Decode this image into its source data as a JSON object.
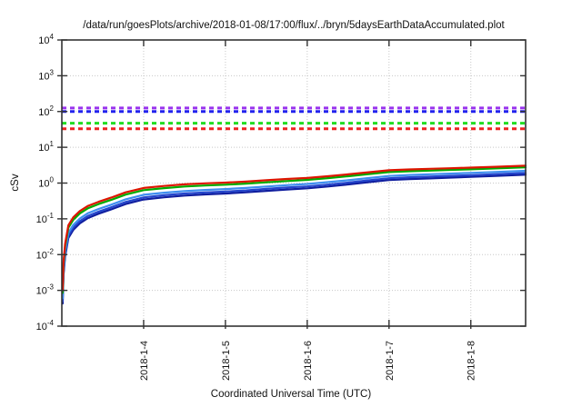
{
  "chart_data": {
    "type": "line",
    "title": "/data/run/goesPlots/archive/2018-01-08/17:00/flux/../bryn/5daysEarthDataAccumulated.plot",
    "xlabel": "Coordinated Universal Time (UTC)",
    "ylabel": "cSv",
    "x_scale": "time-linear",
    "y_scale": "log10",
    "xlim_days": [
      0,
      5.67
    ],
    "ylim": [
      0.0001,
      10000
    ],
    "x_ticks": [
      {
        "label": "2018-1-4",
        "t_days": 1
      },
      {
        "label": "2018-1-5",
        "t_days": 2
      },
      {
        "label": "2018-1-6",
        "t_days": 3
      },
      {
        "label": "2018-1-7",
        "t_days": 4
      },
      {
        "label": "2018-1-8",
        "t_days": 5
      }
    ],
    "y_tick_exponents": [
      4,
      3,
      2,
      1,
      0,
      -1,
      -2,
      -3,
      -4
    ],
    "grid": {
      "on": true,
      "style": "dotted",
      "color": "#c8c8c8"
    },
    "legend": {
      "shown": false
    },
    "thresholds": [
      {
        "name": "limit-purple",
        "value_cSv": 125,
        "color": "#9933ee",
        "style": "dashed"
      },
      {
        "name": "limit-blue",
        "value_cSv": 100,
        "color": "#2222ee",
        "style": "dashed"
      },
      {
        "name": "limit-green",
        "value_cSv": 47,
        "color": "#22dd22",
        "style": "dashed"
      },
      {
        "name": "limit-red",
        "value_cSv": 33,
        "color": "#ee2222",
        "style": "dashed"
      }
    ],
    "t_days": [
      0.01,
      0.02,
      0.04,
      0.08,
      0.14,
      0.22,
      0.32,
      0.45,
      0.6,
      0.78,
      1.0,
      1.25,
      1.5,
      1.75,
      2.0,
      2.25,
      2.5,
      2.75,
      3.0,
      3.25,
      3.5,
      3.75,
      4.0,
      4.25,
      4.5,
      4.75,
      5.0,
      5.3,
      5.67
    ],
    "series": [
      {
        "name": "accumulated-dose-red",
        "color": "#dd1500",
        "values": [
          0.001,
          0.006,
          0.02,
          0.066,
          0.11,
          0.165,
          0.23,
          0.3,
          0.39,
          0.55,
          0.73,
          0.83,
          0.92,
          0.98,
          1.03,
          1.1,
          1.2,
          1.3,
          1.39,
          1.55,
          1.75,
          2.0,
          2.28,
          2.4,
          2.5,
          2.6,
          2.7,
          2.85,
          3.05
        ]
      },
      {
        "name": "accumulated-dose-green",
        "color": "#00aa00",
        "values": [
          0.00085,
          0.00511,
          0.0171,
          0.0564,
          0.0943,
          0.142,
          0.198,
          0.259,
          0.337,
          0.476,
          0.634,
          0.722,
          0.801,
          0.856,
          0.901,
          0.965,
          1.05,
          1.14,
          1.23,
          1.37,
          1.55,
          1.78,
          2.03,
          2.14,
          2.23,
          2.33,
          2.42,
          2.56,
          2.75
        ]
      },
      {
        "name": "accumulated-dose-lightblue",
        "color": "#3d8ef0",
        "values": [
          0.0006,
          0.00363,
          0.0122,
          0.0405,
          0.0679,
          0.102,
          0.144,
          0.189,
          0.247,
          0.351,
          0.469,
          0.537,
          0.599,
          0.643,
          0.68,
          0.731,
          0.802,
          0.875,
          0.941,
          1.06,
          1.2,
          1.38,
          1.58,
          1.68,
          1.76,
          1.84,
          1.92,
          2.04,
          2.2
        ]
      },
      {
        "name": "accumulated-dose-blue",
        "color": "#2345cc",
        "values": [
          0.0005,
          0.00303,
          0.0102,
          0.0339,
          0.0569,
          0.0862,
          0.121,
          0.159,
          0.209,
          0.297,
          0.398,
          0.456,
          0.509,
          0.547,
          0.579,
          0.624,
          0.686,
          0.749,
          0.807,
          0.906,
          1.03,
          1.19,
          1.36,
          1.45,
          1.52,
          1.59,
          1.66,
          1.77,
          1.91
        ]
      },
      {
        "name": "accumulated-dose-navy",
        "color": "#101e9e",
        "values": [
          0.00043,
          0.00261,
          0.0088,
          0.0293,
          0.0493,
          0.0748,
          0.105,
          0.139,
          0.182,
          0.259,
          0.348,
          0.399,
          0.447,
          0.481,
          0.51,
          0.55,
          0.605,
          0.662,
          0.714,
          0.803,
          0.915,
          1.06,
          1.21,
          1.29,
          1.35,
          1.42,
          1.49,
          1.58,
          1.71
        ]
      }
    ],
    "border_color": "#333333"
  }
}
